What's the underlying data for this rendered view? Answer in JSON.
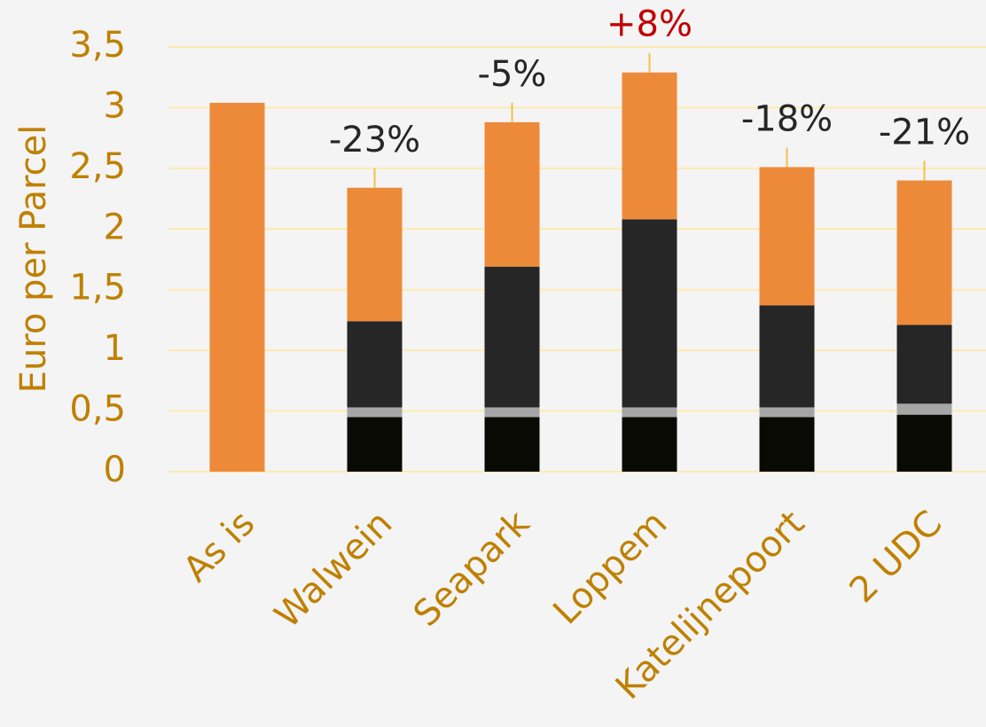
{
  "chart_data": {
    "type": "stacked_bar",
    "y_axis_label": "Euro per Parcel",
    "categories": [
      "As is",
      "Walwein",
      "Seapark",
      "Loppem",
      "Katelijnepoort",
      "2 UDC"
    ],
    "series": [
      {
        "color": "#0a0a05",
        "values": [
          0,
          0.45,
          0.45,
          0.45,
          0.45,
          0.47
        ]
      },
      {
        "color": "#a6a6a6",
        "values": [
          0,
          0.08,
          0.08,
          0.08,
          0.08,
          0.09
        ]
      },
      {
        "color": "#262626",
        "values": [
          0,
          0.71,
          1.16,
          1.55,
          0.84,
          0.65
        ]
      },
      {
        "color": "#ed8a3a",
        "values": [
          3.04,
          1.1,
          1.19,
          1.21,
          1.14,
          1.19
        ]
      }
    ],
    "annotations": [
      null,
      "-23%",
      "-5%",
      "+8%",
      "-18%",
      "-21%"
    ],
    "annotation_colors": [
      null,
      "#262626",
      "#262626",
      "#c00000",
      "#262626",
      "#262626"
    ],
    "ylim": [
      0,
      3.5
    ],
    "yticks": [
      0,
      {
        "value": 0.5,
        "label": "0,5"
      },
      1,
      {
        "value": 1.5,
        "label": "1,5"
      },
      2,
      {
        "value": 2.5,
        "label": "2,5"
      },
      3,
      {
        "value": 3.5,
        "label": "3,5"
      }
    ],
    "grid": true,
    "grid_color": "#fde9b0",
    "axis_text_color": "#bf8000"
  }
}
